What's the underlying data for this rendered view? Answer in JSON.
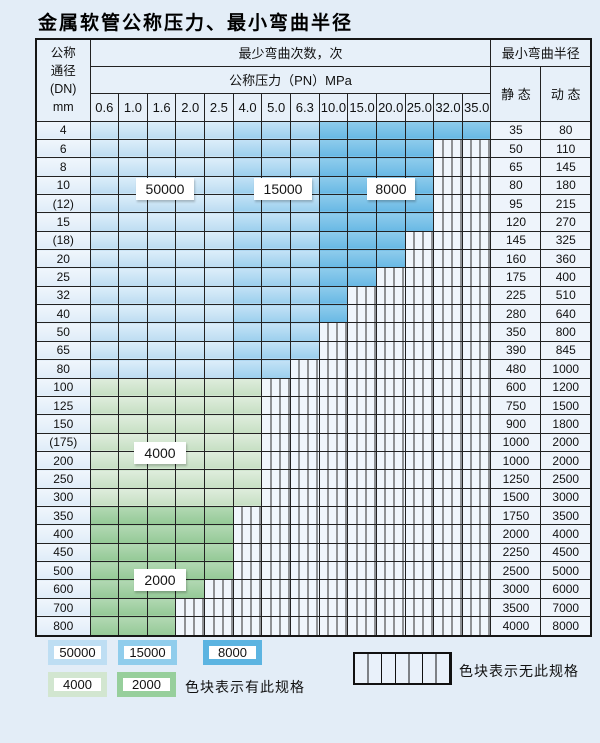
{
  "title": "金属软管公称压力、最小弯曲半径",
  "table": {
    "corner": [
      "公称",
      "通径",
      "(DN)",
      "mm"
    ],
    "bend_cycles_header": "最少弯曲次数，次",
    "pressure_header": "公称压力（PN）MPa",
    "radius_header": "最小弯曲半径",
    "static_header": "静 态",
    "dynamic_header": "动 态",
    "pressures": [
      "0.6",
      "1.0",
      "1.6",
      "2.0",
      "2.5",
      "4.0",
      "5.0",
      "6.3",
      "10.0",
      "15.0",
      "20.0",
      "25.0",
      "32.0",
      "35.0"
    ],
    "blue_shade_breaks": [
      5,
      8
    ],
    "rows": [
      {
        "dn": "4",
        "colored": 14,
        "shade": "b",
        "static": "35",
        "dynamic": "80"
      },
      {
        "dn": "6",
        "colored": 12,
        "shade": "b",
        "static": "50",
        "dynamic": "110"
      },
      {
        "dn": "8",
        "colored": 12,
        "shade": "b",
        "static": "65",
        "dynamic": "145"
      },
      {
        "dn": "10",
        "colored": 12,
        "shade": "b",
        "static": "80",
        "dynamic": "180"
      },
      {
        "dn": "(12)",
        "colored": 12,
        "shade": "b",
        "static": "95",
        "dynamic": "215"
      },
      {
        "dn": "15",
        "colored": 12,
        "shade": "b",
        "static": "120",
        "dynamic": "270"
      },
      {
        "dn": "(18)",
        "colored": 11,
        "shade": "b",
        "static": "145",
        "dynamic": "325"
      },
      {
        "dn": "20",
        "colored": 11,
        "shade": "b",
        "static": "160",
        "dynamic": "360"
      },
      {
        "dn": "25",
        "colored": 10,
        "shade": "b",
        "static": "175",
        "dynamic": "400"
      },
      {
        "dn": "32",
        "colored": 9,
        "shade": "b",
        "static": "225",
        "dynamic": "510"
      },
      {
        "dn": "40",
        "colored": 9,
        "shade": "b",
        "static": "280",
        "dynamic": "640"
      },
      {
        "dn": "50",
        "colored": 8,
        "shade": "b",
        "static": "350",
        "dynamic": "800"
      },
      {
        "dn": "65",
        "colored": 8,
        "shade": "b",
        "static": "390",
        "dynamic": "845"
      },
      {
        "dn": "80",
        "colored": 7,
        "shade": "b",
        "static": "480",
        "dynamic": "1000"
      },
      {
        "dn": "100",
        "colored": 6,
        "shade": "gl",
        "static": "600",
        "dynamic": "1200"
      },
      {
        "dn": "125",
        "colored": 6,
        "shade": "gl",
        "static": "750",
        "dynamic": "1500"
      },
      {
        "dn": "150",
        "colored": 6,
        "shade": "gl",
        "static": "900",
        "dynamic": "1800"
      },
      {
        "dn": "(175)",
        "colored": 6,
        "shade": "gl",
        "static": "1000",
        "dynamic": "2000"
      },
      {
        "dn": "200",
        "colored": 6,
        "shade": "gl",
        "static": "1000",
        "dynamic": "2000"
      },
      {
        "dn": "250",
        "colored": 6,
        "shade": "gl",
        "static": "1250",
        "dynamic": "2500"
      },
      {
        "dn": "300",
        "colored": 6,
        "shade": "gl",
        "static": "1500",
        "dynamic": "3000"
      },
      {
        "dn": "350",
        "colored": 5,
        "shade": "gd",
        "static": "1750",
        "dynamic": "3500"
      },
      {
        "dn": "400",
        "colored": 5,
        "shade": "gd",
        "static": "2000",
        "dynamic": "4000"
      },
      {
        "dn": "450",
        "colored": 5,
        "shade": "gd",
        "static": "2250",
        "dynamic": "4500"
      },
      {
        "dn": "500",
        "colored": 5,
        "shade": "gd",
        "static": "2500",
        "dynamic": "5000"
      },
      {
        "dn": "600",
        "colored": 4,
        "shade": "gd",
        "static": "3000",
        "dynamic": "6000"
      },
      {
        "dn": "700",
        "colored": 3,
        "shade": "gd",
        "static": "3500",
        "dynamic": "7000"
      },
      {
        "dn": "800",
        "colored": 3,
        "shade": "gd",
        "static": "4000",
        "dynamic": "8000"
      }
    ]
  },
  "cycle_labels": [
    "50000",
    "15000",
    "8000",
    "4000",
    "2000"
  ],
  "legend": {
    "swatches": [
      {
        "label": "50000",
        "color": "#bedef3"
      },
      {
        "label": "15000",
        "color": "#90cdec"
      },
      {
        "label": "8000",
        "color": "#5cb4e1"
      },
      {
        "label": "4000",
        "color": "#d2e6d0"
      },
      {
        "label": "2000",
        "color": "#97cf9c"
      }
    ],
    "available_note": "色块表示有此规格",
    "unavailable_note": "色块表示无此规格"
  },
  "colors": {
    "blue_50000": "#cfe5f6",
    "blue_15000": "#a9d6f0",
    "blue_8000": "#74bfe7",
    "green_4000": "#d3e6d0",
    "green_2000": "#a3d1a4",
    "grid_line": "#222222",
    "page_background": "#e3edf7"
  },
  "chart_data": {
    "type": "table",
    "title": "金属软管公称压力、最小弯曲半径",
    "columns": [
      "公称通径 DN (mm)",
      "最大公称压力 PN (MPa)",
      "静态最小弯曲半径",
      "动态最小弯曲半径"
    ],
    "rows": [
      [
        "4",
        "35.0",
        "35",
        "80"
      ],
      [
        "6",
        "25.0",
        "50",
        "110"
      ],
      [
        "8",
        "25.0",
        "65",
        "145"
      ],
      [
        "10",
        "25.0",
        "80",
        "180"
      ],
      [
        "(12)",
        "25.0",
        "95",
        "215"
      ],
      [
        "15",
        "25.0",
        "120",
        "270"
      ],
      [
        "(18)",
        "20.0",
        "145",
        "325"
      ],
      [
        "20",
        "20.0",
        "160",
        "360"
      ],
      [
        "25",
        "15.0",
        "175",
        "400"
      ],
      [
        "32",
        "10.0",
        "225",
        "510"
      ],
      [
        "40",
        "10.0",
        "280",
        "640"
      ],
      [
        "50",
        "6.3",
        "350",
        "800"
      ],
      [
        "65",
        "6.3",
        "390",
        "845"
      ],
      [
        "80",
        "5.0",
        "480",
        "1000"
      ],
      [
        "100",
        "4.0",
        "600",
        "1200"
      ],
      [
        "125",
        "4.0",
        "750",
        "1500"
      ],
      [
        "150",
        "4.0",
        "900",
        "1800"
      ],
      [
        "(175)",
        "4.0",
        "1000",
        "2000"
      ],
      [
        "200",
        "4.0",
        "1000",
        "2000"
      ],
      [
        "250",
        "4.0",
        "1250",
        "2500"
      ],
      [
        "300",
        "4.0",
        "1500",
        "3000"
      ],
      [
        "350",
        "2.5",
        "1750",
        "3500"
      ],
      [
        "400",
        "2.5",
        "2000",
        "4000"
      ],
      [
        "450",
        "2.5",
        "2250",
        "4500"
      ],
      [
        "500",
        "2.5",
        "2500",
        "5000"
      ],
      [
        "600",
        "2.0",
        "3000",
        "6000"
      ],
      [
        "700",
        "1.6",
        "3500",
        "7000"
      ],
      [
        "800",
        "1.6",
        "4000",
        "8000"
      ]
    ],
    "bend_cycle_zones": [
      {
        "cycles": 50000,
        "pn_columns": "0.6–2.5",
        "dn_rows": "4–80"
      },
      {
        "cycles": 15000,
        "pn_columns": "4.0–6.3",
        "dn_rows": "4–80"
      },
      {
        "cycles": 8000,
        "pn_columns": "10.0–35.0",
        "dn_rows": "4–80"
      },
      {
        "cycles": 4000,
        "pn_columns": "0.6–4.0",
        "dn_rows": "100–300"
      },
      {
        "cycles": 2000,
        "pn_columns": "0.6–2.5",
        "dn_rows": "350–800"
      }
    ]
  }
}
